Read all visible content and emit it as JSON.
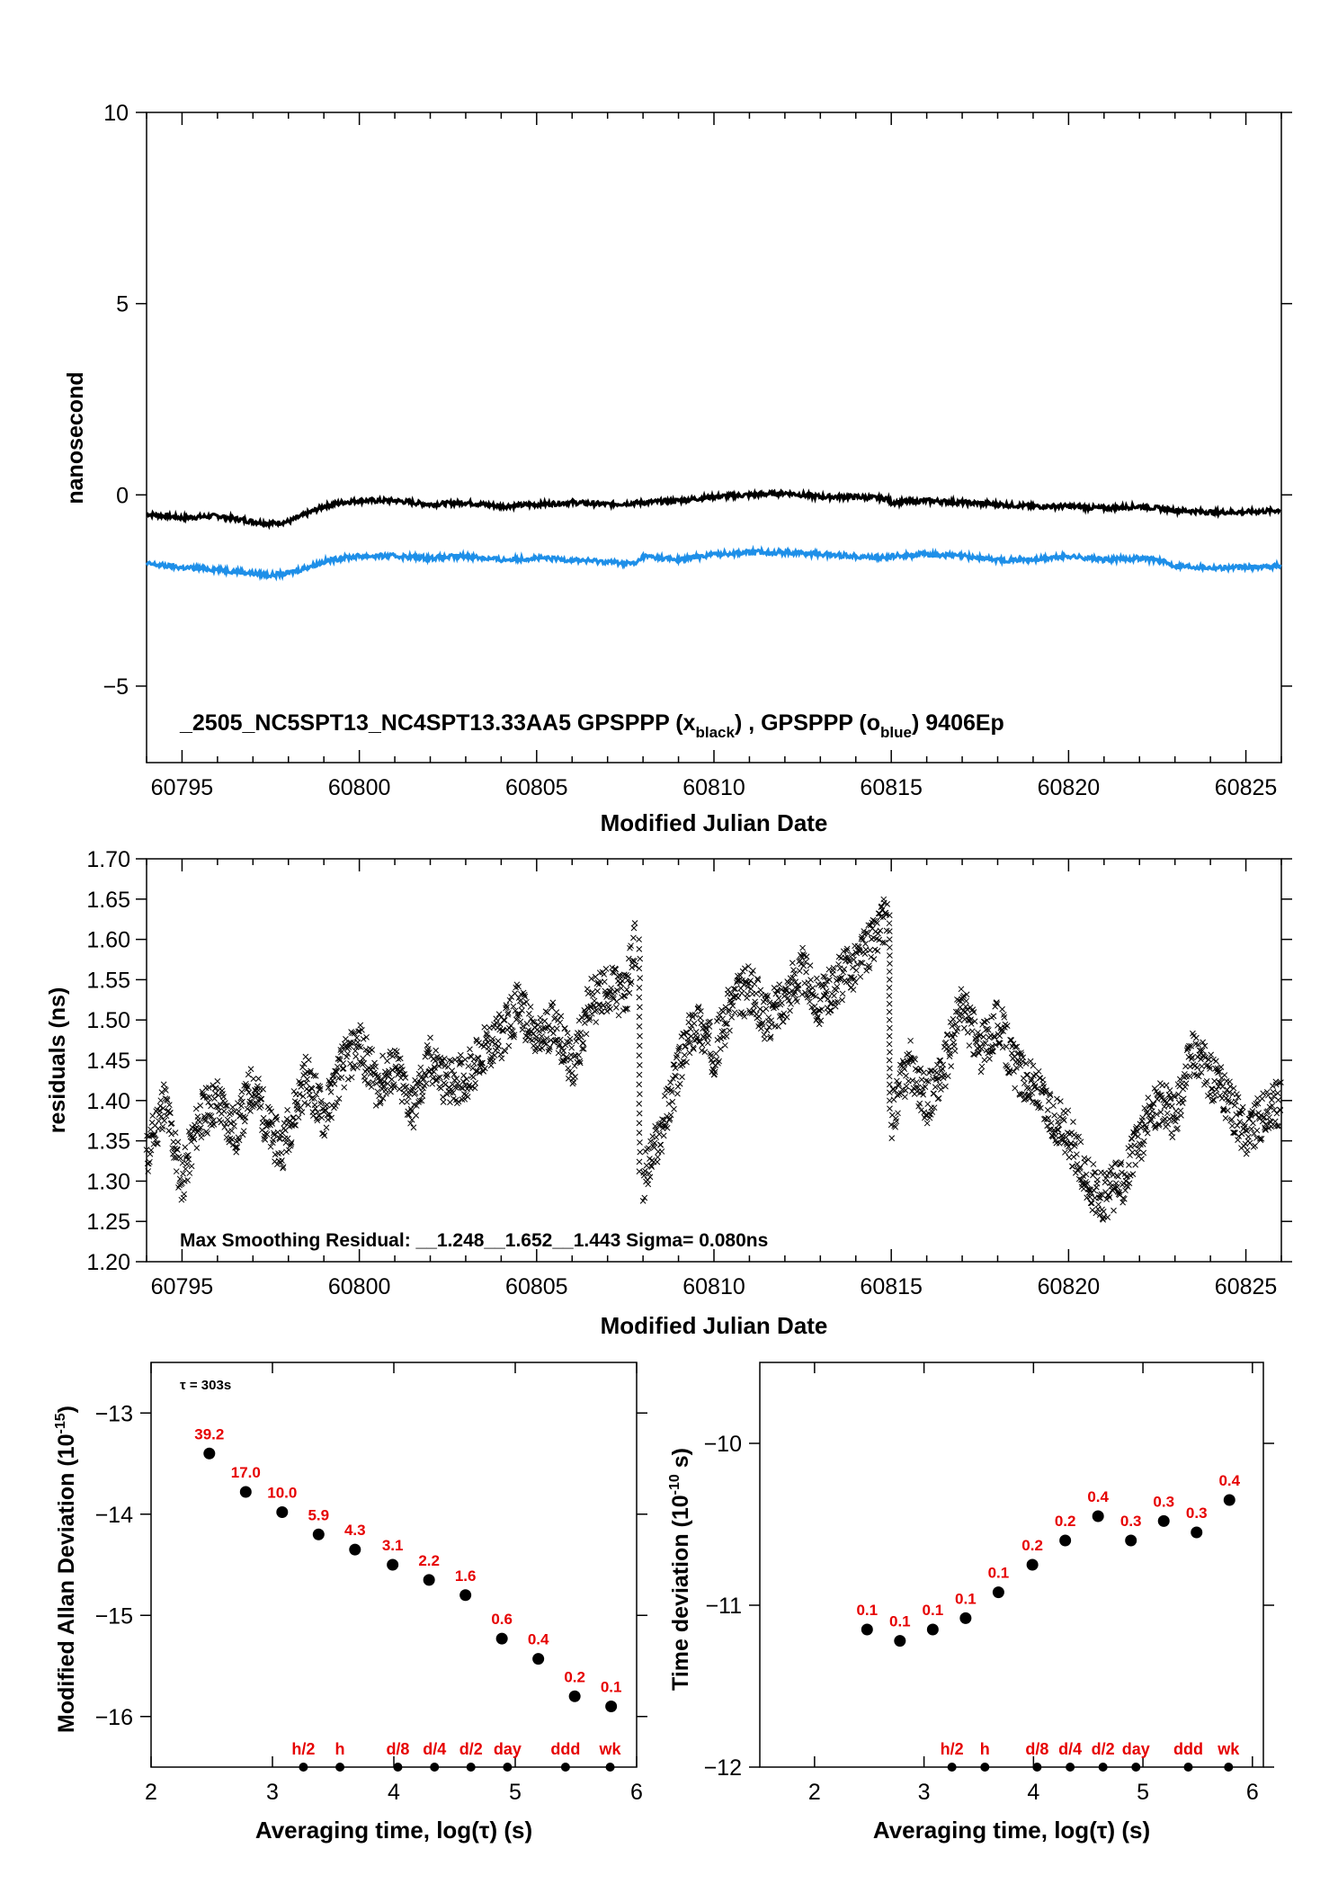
{
  "colors": {
    "black": "#000000",
    "blue": "#1e8fe8",
    "red": "#e60000",
    "frame": "#000000"
  },
  "chart_data": [
    {
      "type": "line",
      "xlabel": "Modified Julian Date",
      "ylabel": "nanosecond",
      "xlim": [
        60794,
        60826
      ],
      "ylim": [
        -7,
        10
      ],
      "xticks": [
        60795,
        60800,
        60805,
        60810,
        60815,
        60820,
        60825
      ],
      "yticks": [
        10,
        5,
        0,
        -5
      ],
      "ytick_labels": [
        "10",
        "5",
        "0",
        "−5"
      ],
      "annotation_main": "_2505_NC5SPT13_NC4SPT13.33AA5     GPSPPP (x",
      "annotation_sub1": "black",
      "annotation_mid": ") ,  GPSPPP (o",
      "annotation_sub2": "blue",
      "annotation_end": ")  9406Ep",
      "series": [
        {
          "color": "#000000",
          "x": [
            60794,
            60795,
            60796,
            60797,
            60797.5,
            60798,
            60798.5,
            60799,
            60799.5,
            60800,
            60801,
            60802,
            60803,
            60804,
            60805,
            60806,
            60807,
            60808,
            60809,
            60810,
            60811,
            60812,
            60813,
            60814,
            60814.9,
            60815,
            60816,
            60817,
            60818,
            60819,
            60820,
            60821,
            60822,
            60823,
            60824,
            60825,
            60826
          ],
          "y": [
            -0.5,
            -0.6,
            -0.55,
            -0.7,
            -0.75,
            -0.7,
            -0.5,
            -0.3,
            -0.2,
            -0.15,
            -0.15,
            -0.25,
            -0.2,
            -0.3,
            -0.25,
            -0.2,
            -0.25,
            -0.2,
            -0.15,
            -0.05,
            0.0,
            0.05,
            -0.05,
            -0.05,
            -0.1,
            -0.2,
            -0.15,
            -0.2,
            -0.25,
            -0.3,
            -0.3,
            -0.35,
            -0.3,
            -0.4,
            -0.45,
            -0.45,
            -0.4
          ]
        },
        {
          "color": "#1e8fe8",
          "x": [
            60794,
            60795,
            60796,
            60797,
            60797.5,
            60798,
            60798.5,
            60799,
            60799.5,
            60800,
            60801,
            60802,
            60803,
            60804,
            60805,
            60806,
            60807,
            60807.8,
            60808,
            60809,
            60810,
            60811,
            60812,
            60813,
            60814,
            60814.9,
            60815,
            60816,
            60817,
            60818,
            60819,
            60820,
            60821,
            60822,
            60822.5,
            60823,
            60824,
            60825,
            60826
          ],
          "y": [
            -1.8,
            -1.9,
            -1.95,
            -2.05,
            -2.1,
            -2.05,
            -1.9,
            -1.75,
            -1.65,
            -1.6,
            -1.6,
            -1.65,
            -1.6,
            -1.7,
            -1.65,
            -1.7,
            -1.75,
            -1.8,
            -1.6,
            -1.7,
            -1.55,
            -1.5,
            -1.5,
            -1.55,
            -1.6,
            -1.65,
            -1.6,
            -1.55,
            -1.6,
            -1.7,
            -1.7,
            -1.6,
            -1.7,
            -1.65,
            -1.7,
            -1.85,
            -1.9,
            -1.9,
            -1.85
          ]
        }
      ]
    },
    {
      "type": "scatter",
      "xlabel": "Modified Julian Date",
      "ylabel": "residuals (ns)",
      "xlim": [
        60794,
        60826
      ],
      "ylim": [
        1.2,
        1.7
      ],
      "xticks": [
        60795,
        60800,
        60805,
        60810,
        60815,
        60820,
        60825
      ],
      "yticks": [
        1.2,
        1.25,
        1.3,
        1.35,
        1.4,
        1.45,
        1.5,
        1.55,
        1.6,
        1.65,
        1.7
      ],
      "ytick_labels": [
        "1.20",
        "1.25",
        "1.30",
        "1.35",
        "1.40",
        "1.45",
        "1.50",
        "1.55",
        "1.60",
        "1.65",
        "1.70"
      ],
      "annotation": "Max Smoothing Residual: __1.248__1.652__1.443  Sigma= 0.080ns",
      "series": [
        {
          "color": "#000000",
          "x": [
            60794,
            60794.5,
            60795,
            60795.5,
            60796,
            60796.5,
            60797,
            60797.5,
            60797.8,
            60798.5,
            60799,
            60799.5,
            60800,
            60800.5,
            60801,
            60801.5,
            60802,
            60802.5,
            60803,
            60803.5,
            60804,
            60804.5,
            60805,
            60805.5,
            60806,
            60806.5,
            60807,
            60807.5,
            60807.8,
            60808,
            60808.5,
            60809,
            60809.5,
            60810,
            60810.5,
            60811,
            60811.5,
            60812,
            60812.5,
            60813,
            60813.5,
            60814,
            60814.5,
            60814.9,
            60815,
            60815.5,
            60816,
            60816.5,
            60817,
            60817.5,
            60818,
            60818.5,
            60819,
            60819.5,
            60820,
            60820.5,
            60821,
            60821.5,
            60822,
            60822.5,
            60823,
            60823.5,
            60824,
            60824.5,
            60825,
            60825.5,
            60826
          ],
          "y": [
            1.33,
            1.4,
            1.3,
            1.38,
            1.4,
            1.36,
            1.42,
            1.36,
            1.34,
            1.43,
            1.38,
            1.44,
            1.47,
            1.42,
            1.44,
            1.39,
            1.45,
            1.42,
            1.43,
            1.46,
            1.48,
            1.52,
            1.47,
            1.5,
            1.44,
            1.52,
            1.54,
            1.53,
            1.6,
            1.3,
            1.36,
            1.44,
            1.5,
            1.46,
            1.52,
            1.54,
            1.5,
            1.53,
            1.56,
            1.52,
            1.55,
            1.57,
            1.6,
            1.63,
            1.38,
            1.45,
            1.4,
            1.44,
            1.52,
            1.46,
            1.5,
            1.44,
            1.42,
            1.38,
            1.36,
            1.3,
            1.28,
            1.3,
            1.35,
            1.4,
            1.38,
            1.46,
            1.43,
            1.4,
            1.36,
            1.38,
            1.4
          ]
        }
      ]
    },
    {
      "type": "scatter",
      "xlabel": "Averaging time, log(τ) (s)",
      "ylabel": "Modified Allan Deviation (10",
      "ylabel_exp": "-15",
      "ylabel_end": ")",
      "tau_note": "τ = 303s",
      "xlim": [
        2,
        6
      ],
      "ylim": [
        -16.5,
        -12.5
      ],
      "xticks": [
        2,
        3,
        4,
        5,
        6
      ],
      "yticks": [
        -13,
        -14,
        -15,
        -16
      ],
      "ytick_labels": [
        "−13",
        "−14",
        "−15",
        "−16"
      ],
      "x": [
        2.48,
        2.78,
        3.08,
        3.38,
        3.68,
        3.99,
        4.29,
        4.59,
        4.89,
        5.19,
        5.49,
        5.79
      ],
      "y": [
        -13.4,
        -13.78,
        -13.98,
        -14.2,
        -14.35,
        -14.5,
        -14.65,
        -14.8,
        -15.23,
        -15.43,
        -15.8,
        -15.9
      ],
      "point_labels": [
        "39.2",
        "17.0",
        "10.0",
        "5.9",
        "4.3",
        "3.1",
        "2.2",
        "1.6",
        "0.6",
        "0.4",
        "0.2",
        "0.1"
      ],
      "markers": {
        "labels": [
          "h/2",
          "h",
          "d/8",
          "d/4",
          "d/2",
          "day",
          "ddd",
          "wk"
        ],
        "x": [
          3.255,
          3.556,
          4.033,
          4.335,
          4.635,
          4.936,
          5.414,
          5.782
        ]
      }
    },
    {
      "type": "scatter",
      "xlabel": "Averaging time, log(τ) (s)",
      "ylabel": "Time deviation (10",
      "ylabel_exp": "-10",
      "ylabel_end": " s)",
      "xlim": [
        1.5,
        6.1
      ],
      "ylim": [
        -12,
        -9.5
      ],
      "xticks": [
        2,
        3,
        4,
        5,
        6
      ],
      "yticks": [
        -10,
        -11,
        -12
      ],
      "ytick_labels": [
        "−10",
        "−11",
        "−12"
      ],
      "x": [
        2.48,
        2.78,
        3.08,
        3.38,
        3.68,
        3.99,
        4.29,
        4.59,
        4.89,
        5.19,
        5.49,
        5.79
      ],
      "y": [
        -11.15,
        -11.22,
        -11.15,
        -11.08,
        -10.92,
        -10.75,
        -10.6,
        -10.45,
        -10.6,
        -10.48,
        -10.55,
        -10.35
      ],
      "point_labels": [
        "0.1",
        "0.1",
        "0.1",
        "0.1",
        "0.1",
        "0.2",
        "0.2",
        "0.4",
        "0.3",
        "0.3",
        "0.3",
        "0.4"
      ],
      "markers": {
        "labels": [
          "h/2",
          "h",
          "d/8",
          "d/4",
          "d/2",
          "day",
          "ddd",
          "wk"
        ],
        "x": [
          3.255,
          3.556,
          4.033,
          4.335,
          4.635,
          4.936,
          5.414,
          5.782
        ]
      }
    }
  ]
}
